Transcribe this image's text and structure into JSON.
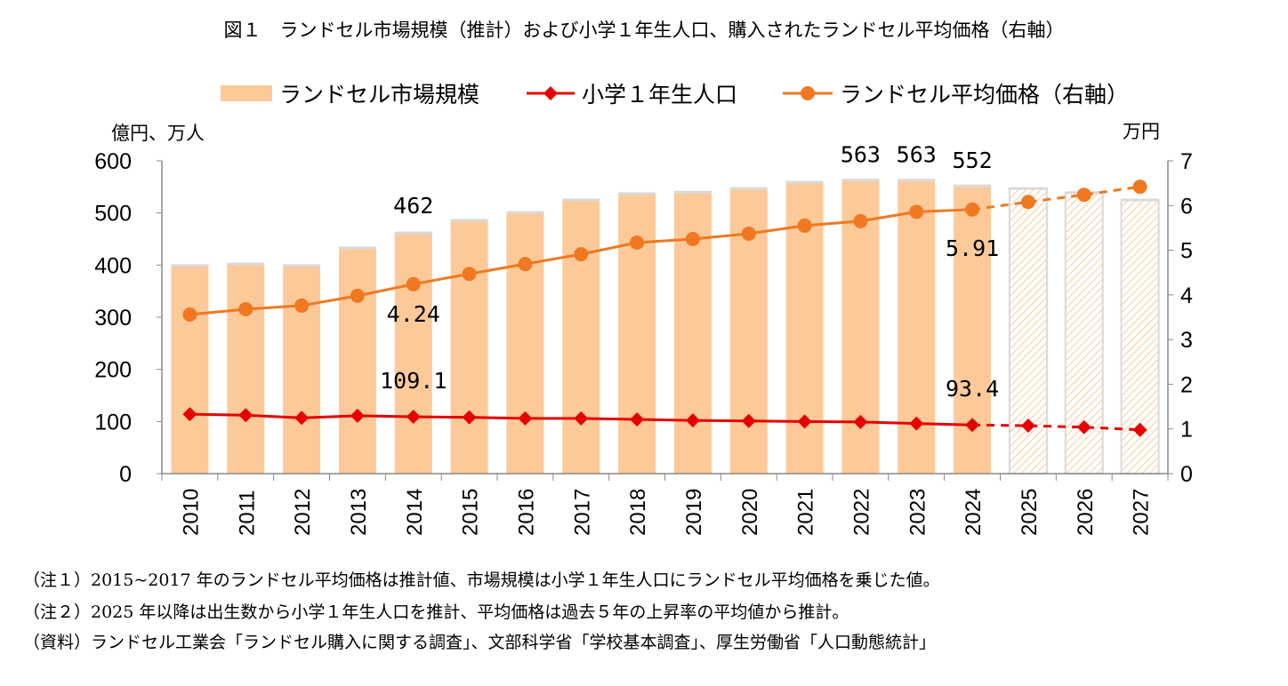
{
  "title": "図１　ランドセル市場規模（推計）および小学１年生人口、購入されたランドセル平均価格（右軸）",
  "chart_data": {
    "type": "bar+line",
    "categories": [
      "2010",
      "2011",
      "2012",
      "2013",
      "2014",
      "2015",
      "2016",
      "2017",
      "2018",
      "2019",
      "2020",
      "2021",
      "2022",
      "2023",
      "2024",
      "2025",
      "2026",
      "2027"
    ],
    "y_left": {
      "label": "億円、万人",
      "range": [
        0,
        600
      ],
      "ticks": [
        0,
        100,
        200,
        300,
        400,
        500,
        600
      ]
    },
    "y_right": {
      "label": "万円",
      "range": [
        0,
        7
      ],
      "ticks": [
        0,
        1,
        2,
        3,
        4,
        5,
        6,
        7
      ]
    },
    "legend_position": "top",
    "projection_from": "2025",
    "series": [
      {
        "name": "ランドセル市場規模",
        "type": "bar",
        "axis": "left",
        "color": "#FCC999",
        "values": [
          399,
          402,
          399,
          433,
          462,
          486,
          501,
          525,
          537,
          540,
          547,
          559,
          563,
          563,
          552,
          547,
          539,
          525
        ],
        "labels": {
          "2014": "462",
          "2022": "563",
          "2023": "563",
          "2024": "552"
        }
      },
      {
        "name": "小学１年生人口",
        "type": "line",
        "marker": "diamond",
        "axis": "left",
        "color": "#E60000",
        "values": [
          114,
          112,
          107,
          111,
          109.1,
          108,
          106,
          106,
          104,
          102,
          101,
          100,
          99,
          96,
          93.4,
          92,
          89,
          84
        ],
        "labels": {
          "2014": "109.1",
          "2024": "93.4"
        }
      },
      {
        "name": "ランドセル平均価格（右軸）",
        "type": "line",
        "marker": "circle",
        "axis": "right",
        "color": "#F07820",
        "values": [
          3.56,
          3.68,
          3.76,
          3.98,
          4.24,
          4.47,
          4.69,
          4.91,
          5.17,
          5.25,
          5.37,
          5.55,
          5.65,
          5.86,
          5.91,
          6.08,
          6.24,
          6.42
        ],
        "labels": {
          "2014": "4.24",
          "2024": "5.91"
        }
      }
    ]
  },
  "notes": [
    "（注１）2015~2017 年のランドセル平均価格は推計値、市場規模は小学１年生人口にランドセル平均価格を乗じた値。",
    "（注２）2025 年以降は出生数から小学１年生人口を推計、平均価格は過去５年の上昇率の平均値から推計。",
    "（資料）ランドセル工業会「ランドセル購入に関する調査」、文部科学省「学校基本調査」、厚生労働省「人口動態統計」"
  ]
}
